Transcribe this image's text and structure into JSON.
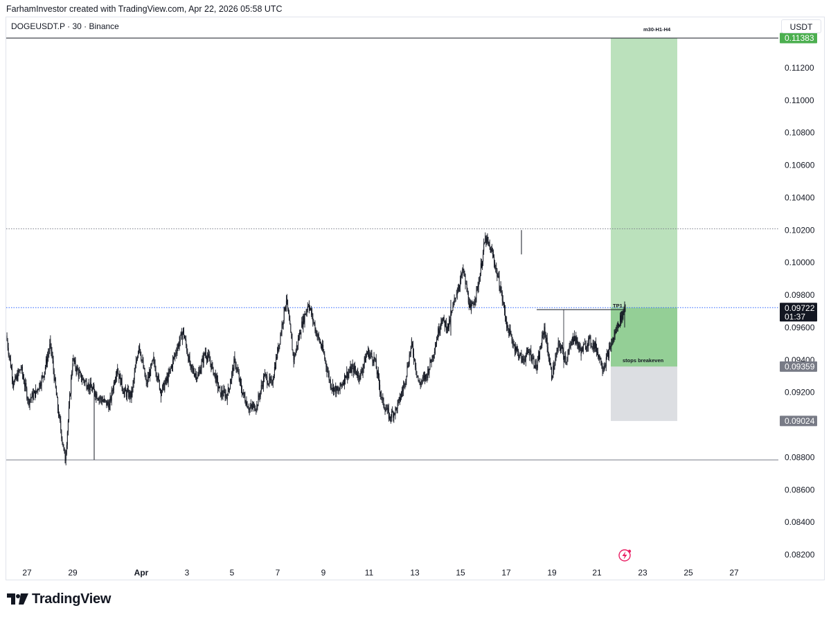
{
  "header": {
    "attribution": "FarhamInvestor created with TradingView.com, Apr 22, 2026 05:58 UTC",
    "symbol": "DOGEUSDT.P · 30 · Binance",
    "currency": "USDT"
  },
  "footer": {
    "logo_text": "TradingView",
    "logo_icon": "tradingview-logo-icon"
  },
  "chart_data": {
    "type": "candlestick",
    "symbol": "DOGEUSDT.P",
    "timeframe": "30",
    "exchange": "Binance",
    "y_axis": {
      "ticks": [
        "0.11200",
        "0.11000",
        "0.10800",
        "0.10600",
        "0.10400",
        "0.10200",
        "0.10000",
        "0.09800",
        "0.09600",
        "0.09400",
        "0.09200",
        "0.08800",
        "0.08600",
        "0.08400",
        "0.08200"
      ],
      "range": [
        0.0814,
        0.1137
      ]
    },
    "x_axis": {
      "ticks": [
        "27",
        "29",
        "Apr",
        "3",
        "5",
        "7",
        "9",
        "11",
        "13",
        "15",
        "17",
        "19",
        "21",
        "23",
        "25",
        "27"
      ]
    },
    "price_tags": [
      {
        "label": "0.11383",
        "value": 0.11383,
        "color": "#4caf50",
        "text_color": "#ffffff"
      },
      {
        "label": "0.09722",
        "sublabel": "01:37",
        "value": 0.09722,
        "color": "#131722",
        "text_color": "#ffffff"
      },
      {
        "label": "0.09359",
        "value": 0.09359,
        "color": "#787b86",
        "text_color": "#ffffff"
      },
      {
        "label": "0.09024",
        "value": 0.09024,
        "color": "#787b86",
        "text_color": "#ffffff"
      }
    ],
    "annotations": [
      {
        "text": "m30-H1-H4"
      },
      {
        "text": "TP1"
      },
      {
        "text": "stops breakeven"
      }
    ],
    "horizontal_levels": [
      {
        "value": 0.11383,
        "style": "solid",
        "color": "#131722"
      },
      {
        "value": 0.10208,
        "style": "dotted",
        "color": "#787b86"
      },
      {
        "value": 0.09722,
        "style": "dotted",
        "color": "#2962ff"
      },
      {
        "value": 0.08784,
        "style": "solid",
        "color": "#787b86"
      }
    ],
    "position": {
      "type": "long",
      "target": 0.11383,
      "entry": 0.09722,
      "breakeven": 0.09359,
      "stop": 0.09024,
      "profit_color": "#4caf50",
      "loss_color": "#b2b5be"
    },
    "price_path": [
      [
        0,
        0.0955
      ],
      [
        1,
        0.0925
      ],
      [
        2,
        0.0935
      ],
      [
        3,
        0.0915
      ],
      [
        4,
        0.092
      ],
      [
        5,
        0.093
      ],
      [
        6,
        0.095
      ],
      [
        7,
        0.091
      ],
      [
        8,
        0.0878
      ],
      [
        9,
        0.094
      ],
      [
        10,
        0.093
      ],
      [
        11,
        0.0925
      ],
      [
        12,
        0.092
      ],
      [
        13,
        0.0915
      ],
      [
        14,
        0.0912
      ],
      [
        15,
        0.0935
      ],
      [
        16,
        0.092
      ],
      [
        17,
        0.0918
      ],
      [
        18,
        0.095
      ],
      [
        19,
        0.0925
      ],
      [
        20,
        0.094
      ],
      [
        21,
        0.092
      ],
      [
        22,
        0.093
      ],
      [
        23,
        0.0945
      ],
      [
        24,
        0.0958
      ],
      [
        25,
        0.0935
      ],
      [
        26,
        0.093
      ],
      [
        27,
        0.0945
      ],
      [
        28,
        0.0935
      ],
      [
        29,
        0.092
      ],
      [
        30,
        0.0918
      ],
      [
        31,
        0.094
      ],
      [
        32,
        0.092
      ],
      [
        33,
        0.091
      ],
      [
        34,
        0.0912
      ],
      [
        35,
        0.093
      ],
      [
        36,
        0.0925
      ],
      [
        37,
        0.095
      ],
      [
        38,
        0.0978
      ],
      [
        39,
        0.094
      ],
      [
        40,
        0.096
      ],
      [
        41,
        0.0975
      ],
      [
        42,
        0.0958
      ],
      [
        43,
        0.0945
      ],
      [
        44,
        0.0925
      ],
      [
        45,
        0.092
      ],
      [
        46,
        0.093
      ],
      [
        47,
        0.0935
      ],
      [
        48,
        0.093
      ],
      [
        49,
        0.0945
      ],
      [
        50,
        0.094
      ],
      [
        51,
        0.0915
      ],
      [
        52,
        0.0905
      ],
      [
        53,
        0.091
      ],
      [
        54,
        0.0925
      ],
      [
        55,
        0.095
      ],
      [
        56,
        0.0925
      ],
      [
        57,
        0.093
      ],
      [
        58,
        0.0945
      ],
      [
        59,
        0.0965
      ],
      [
        60,
        0.096
      ],
      [
        61,
        0.098
      ],
      [
        62,
        0.0995
      ],
      [
        63,
        0.097
      ],
      [
        64,
        0.0985
      ],
      [
        65,
        0.1015
      ],
      [
        66,
        0.1005
      ],
      [
        67,
        0.0985
      ],
      [
        68,
        0.096
      ],
      [
        69,
        0.0948
      ],
      [
        70,
        0.094
      ],
      [
        71,
        0.0945
      ],
      [
        72,
        0.0935
      ],
      [
        73,
        0.096
      ],
      [
        74,
        0.093
      ],
      [
        75,
        0.095
      ],
      [
        76,
        0.094
      ],
      [
        77,
        0.0955
      ],
      [
        78,
        0.0945
      ],
      [
        79,
        0.0952
      ],
      [
        80,
        0.0948
      ],
      [
        81,
        0.0935
      ],
      [
        82,
        0.0948
      ],
      [
        83,
        0.0962
      ],
      [
        84,
        0.0972
      ]
    ]
  }
}
